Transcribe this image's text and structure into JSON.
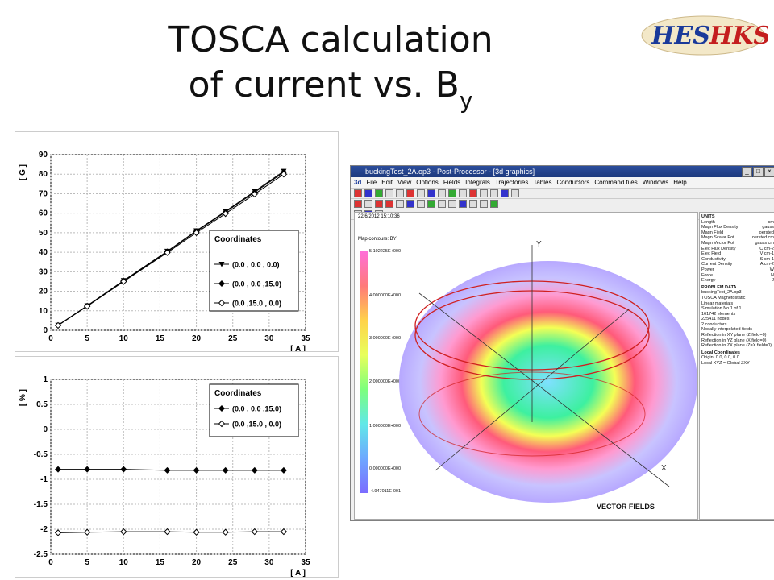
{
  "slide": {
    "title_line1": "TOSCA calculation",
    "title_line2": "of current vs. B",
    "title_subscript": "y",
    "logo_text_left": "HES",
    "logo_text_right": "HKS",
    "logo_colors": {
      "left": "#1a3a9a",
      "right": "#c41e1e"
    }
  },
  "chart_data": [
    {
      "type": "line",
      "ylabel": "[ G ]",
      "xlabel": "[ A ]",
      "xlim": [
        0,
        35
      ],
      "ylim": [
        0,
        90
      ],
      "x_ticks": [
        "0",
        "5",
        "10",
        "15",
        "20",
        "25",
        "30",
        "35"
      ],
      "y_ticks": [
        "0",
        "10",
        "20",
        "30",
        "40",
        "50",
        "60",
        "70",
        "80",
        "90"
      ],
      "legend_title": "Coordinates",
      "legend_placement": "right",
      "x": [
        1,
        5,
        10,
        16,
        20,
        24,
        28,
        32
      ],
      "series": [
        {
          "name": "(0.0 , 0.0 , 0.0)",
          "marker": "triangle-down",
          "values": [
            2.6,
            12.6,
            25.5,
            40.5,
            51,
            61,
            71.2,
            81.5
          ]
        },
        {
          "name": "(0.0 , 0.0 ,15.0)",
          "marker": "diamond-filled",
          "values": [
            2.5,
            12.5,
            25.3,
            40.3,
            50.7,
            60.6,
            70.7,
            81
          ]
        },
        {
          "name": "(0.0 ,15.0 , 0.0)",
          "marker": "diamond-open",
          "values": [
            2.5,
            12.3,
            25,
            39.8,
            50,
            59.8,
            69.8,
            80
          ]
        }
      ]
    },
    {
      "type": "line",
      "ylabel": "[ % ]",
      "xlabel": "[ A ]",
      "xlim": [
        0,
        35
      ],
      "ylim": [
        -2.5,
        1
      ],
      "x_ticks": [
        "0",
        "5",
        "10",
        "15",
        "20",
        "25",
        "30",
        "35"
      ],
      "y_ticks": [
        "-2.5",
        "-2",
        "-1.5",
        "-1",
        "-0.5",
        "0",
        "0.5",
        "1"
      ],
      "legend_title": "Coordinates",
      "legend_placement": "top-right",
      "x": [
        1,
        5,
        10,
        16,
        20,
        24,
        28,
        32
      ],
      "series": [
        {
          "name": "(0.0 , 0.0 ,15.0)",
          "marker": "diamond-filled",
          "values": [
            -0.8,
            -0.8,
            -0.8,
            -0.82,
            -0.82,
            -0.82,
            -0.82,
            -0.82
          ]
        },
        {
          "name": "(0.0 ,15.0 , 0.0)",
          "marker": "diamond-open",
          "values": [
            -2.07,
            -2.06,
            -2.05,
            -2.05,
            -2.06,
            -2.06,
            -2.05,
            -2.05
          ]
        }
      ]
    }
  ],
  "app": {
    "title": "buckingTest_2A.op3 - Post-Processor - [3d graphics]",
    "menu_logo": "3d",
    "menu": [
      "File",
      "Edit",
      "View",
      "Options",
      "Fields",
      "Integrals",
      "Trajectories",
      "Tables",
      "Conductors",
      "Command files",
      "Windows",
      "Help"
    ],
    "date": "22/6/2012 15:10:36",
    "map_label": "Map contours: BY",
    "colorbar_labels": [
      "5.102225E+000",
      "4.000000E+000",
      "3.000000E+000",
      "2.000000E+000",
      "1.000000E+000",
      "0.000000E+000",
      "-4.947011E-001"
    ],
    "axis_labels": {
      "y": "Y",
      "x": "X"
    },
    "vector_fields": "VECTOR FIELDS",
    "panel": {
      "units_title": "UNITS",
      "units": [
        [
          "Length",
          "cm"
        ],
        [
          "Magn Flux Density",
          "gauss"
        ],
        [
          "Magn Field",
          "oersted"
        ],
        [
          "Magn Scalar Pot",
          "oersted cm"
        ],
        [
          "Magn Vector Pot",
          "gauss cm"
        ],
        [
          "Elec Flux Density",
          "C cm-2"
        ],
        [
          "Elec Field",
          "V cm-1"
        ],
        [
          "Conductivity",
          "S cm-1"
        ],
        [
          "Current Density",
          "A cm-2"
        ],
        [
          "Power",
          "W"
        ],
        [
          "Force",
          "N"
        ],
        [
          "Energy",
          "J"
        ]
      ],
      "problem_title": "PROBLEM DATA",
      "problem": [
        "buckingTest_2A.op3",
        "TOSCA Magnetostatic",
        "Linear materials",
        "Simulation No 1 of 1",
        "161742 elements",
        "225411 nodes",
        "2 conductors",
        "Nodally interpolated fields",
        "Reflection in XY plane (Z field=0)",
        "Reflection in YZ plane (X field=0)",
        "Reflection in ZX plane (Z=X field=0)"
      ],
      "local_title": "Local Coordinates",
      "local": [
        "Origin: 0.0, 0.0, 0.0",
        "Local XYZ = Global ZXY"
      ]
    }
  }
}
